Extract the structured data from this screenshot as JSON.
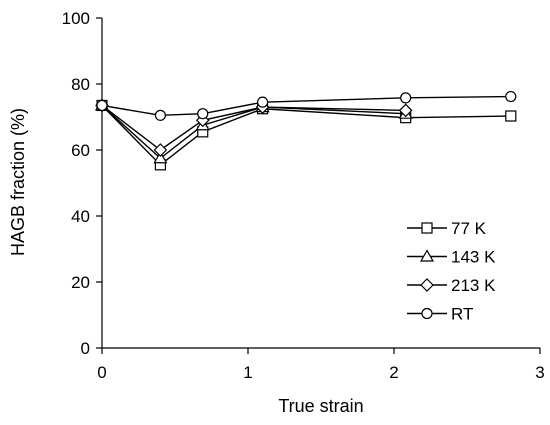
{
  "chart_data": {
    "type": "line",
    "xlabel": "True strain",
    "ylabel": "HAGB fraction (%)",
    "xlim": [
      0,
      3
    ],
    "ylim": [
      0,
      100
    ],
    "x_ticks": [
      0,
      1,
      2,
      3
    ],
    "y_ticks": [
      0,
      20,
      40,
      60,
      80,
      100
    ],
    "grid": false,
    "legend_position": "bottom-right",
    "series": [
      {
        "name": "77 K",
        "marker": "square",
        "x": [
          0,
          0.4,
          0.69,
          1.1,
          2.08,
          2.8
        ],
        "y": [
          73.5,
          55.5,
          65.5,
          72.5,
          69.8,
          70.3
        ]
      },
      {
        "name": "143 K",
        "marker": "triangle",
        "x": [
          0,
          0.4,
          0.69,
          1.1,
          2.08,
          2.8
        ],
        "y": [
          73.5,
          57.5,
          67.5,
          73.0,
          71.0,
          null
        ]
      },
      {
        "name": "213 K",
        "marker": "diamond",
        "x": [
          0,
          0.4,
          0.69,
          1.1,
          2.08,
          2.8
        ],
        "y": [
          73.5,
          60.0,
          69.0,
          73.0,
          72.0,
          null
        ]
      },
      {
        "name": "RT",
        "marker": "circle",
        "x": [
          0,
          0.4,
          0.69,
          1.1,
          2.08,
          2.8
        ],
        "y": [
          73.5,
          70.5,
          71.0,
          74.5,
          75.8,
          76.2
        ]
      }
    ]
  }
}
